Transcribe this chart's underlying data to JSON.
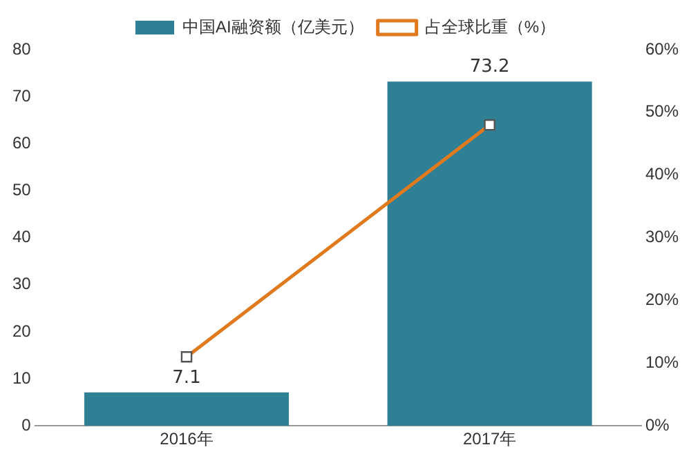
{
  "chart_data": {
    "type": "bar",
    "categories": [
      "2016年",
      "2017年"
    ],
    "series": [
      {
        "name": "中国AI融资额（亿美元）",
        "color": "#2f7f95",
        "values": [
          7.1,
          73.2
        ],
        "value_labels": [
          "7.1",
          "73.2"
        ]
      },
      {
        "name": "占全球比重（%）",
        "type": "line",
        "axis": "y2",
        "color": "#e07a1f",
        "values": [
          11,
          48
        ],
        "marker": "square"
      }
    ],
    "ylim": [
      0,
      80
    ],
    "yticks": [
      0,
      10,
      20,
      30,
      40,
      50,
      60,
      70,
      80
    ],
    "y2lim": [
      0,
      60
    ],
    "y2ticks": [
      {
        "value": 0,
        "label": "0%"
      },
      {
        "value": 10,
        "label": "10%"
      },
      {
        "value": 20,
        "label": "20%"
      },
      {
        "value": 30,
        "label": "30%"
      },
      {
        "value": 40,
        "label": "40%"
      },
      {
        "value": 50,
        "label": "50%"
      },
      {
        "value": 60,
        "label": "60%"
      }
    ],
    "legend": "top",
    "grid": false
  }
}
